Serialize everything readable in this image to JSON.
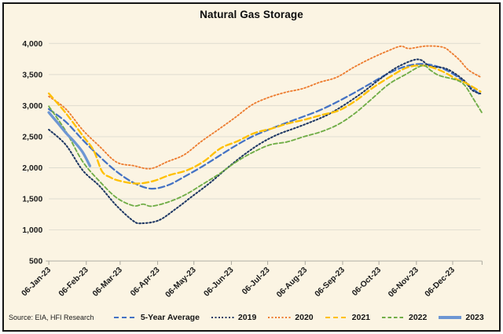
{
  "source_note": "Source: EIA, HFI Research",
  "colors": {
    "background": "#FBF4E3",
    "border": "#141414",
    "gridline": "#DEDCD0",
    "axis_line": "#BFBDB2",
    "tick_mark": "#A9A79D",
    "label_text": "#1A1A1A"
  },
  "chart_data": {
    "type": "line",
    "title": "Natural Gas Storage",
    "xlabel": "",
    "ylabel": "",
    "grid": true,
    "legend_position": "bottom",
    "x_axis": {
      "unit": "day-of-year-2023",
      "domain_days": [
        6,
        363
      ],
      "tick_labels": [
        "06-Jan-23",
        "06-Feb-23",
        "06-Mar-23",
        "06-Apr-23",
        "06-May-23",
        "06-Jun-23",
        "06-Jul-23",
        "06-Aug-23",
        "06-Sep-23",
        "06-Oct-23",
        "06-Nov-23",
        "06-Dec-23"
      ],
      "tick_days": [
        6,
        37,
        65,
        96,
        126,
        157,
        187,
        218,
        249,
        279,
        310,
        340
      ]
    },
    "y_axis": {
      "min": 500,
      "max": 4000,
      "step": 500,
      "tick_labels": [
        "500",
        "1,000",
        "1,500",
        "2,000",
        "2,500",
        "3,000",
        "3,500",
        "4,000"
      ]
    },
    "series": [
      {
        "name": "5-Year Average",
        "color": "#4472C4",
        "style": "dash",
        "width": 2.3,
        "points": [
          [
            6,
            2945
          ],
          [
            20,
            2740
          ],
          [
            34,
            2450
          ],
          [
            48,
            2180
          ],
          [
            62,
            1940
          ],
          [
            76,
            1760
          ],
          [
            90,
            1665
          ],
          [
            104,
            1715
          ],
          [
            118,
            1855
          ],
          [
            132,
            2010
          ],
          [
            146,
            2180
          ],
          [
            160,
            2350
          ],
          [
            174,
            2500
          ],
          [
            188,
            2615
          ],
          [
            202,
            2720
          ],
          [
            216,
            2820
          ],
          [
            230,
            2925
          ],
          [
            244,
            3055
          ],
          [
            258,
            3200
          ],
          [
            272,
            3355
          ],
          [
            286,
            3510
          ],
          [
            300,
            3625
          ],
          [
            314,
            3670
          ],
          [
            328,
            3625
          ],
          [
            342,
            3490
          ],
          [
            356,
            3280
          ],
          [
            363,
            3170
          ]
        ]
      },
      {
        "name": "2019",
        "color": "#1F3864",
        "style": "dot",
        "width": 2.1,
        "points": [
          [
            6,
            2614
          ],
          [
            20,
            2370
          ],
          [
            34,
            1960
          ],
          [
            48,
            1705
          ],
          [
            62,
            1390
          ],
          [
            76,
            1143
          ],
          [
            83,
            1107
          ],
          [
            97,
            1155
          ],
          [
            111,
            1339
          ],
          [
            125,
            1547
          ],
          [
            139,
            1753
          ],
          [
            153,
            1986
          ],
          [
            167,
            2203
          ],
          [
            181,
            2390
          ],
          [
            195,
            2533
          ],
          [
            209,
            2634
          ],
          [
            223,
            2738
          ],
          [
            237,
            2857
          ],
          [
            251,
            3019
          ],
          [
            265,
            3205
          ],
          [
            279,
            3415
          ],
          [
            293,
            3606
          ],
          [
            307,
            3729
          ],
          [
            314,
            3732
          ],
          [
            321,
            3638
          ],
          [
            335,
            3591
          ],
          [
            349,
            3411
          ],
          [
            356,
            3250
          ],
          [
            363,
            3192
          ]
        ]
      },
      {
        "name": "2020",
        "color": "#ED7D31",
        "style": "dot",
        "width": 1.9,
        "points": [
          [
            6,
            3148
          ],
          [
            20,
            2947
          ],
          [
            34,
            2609
          ],
          [
            48,
            2343
          ],
          [
            62,
            2091
          ],
          [
            76,
            2034
          ],
          [
            90,
            1986
          ],
          [
            104,
            2097
          ],
          [
            118,
            2210
          ],
          [
            132,
            2422
          ],
          [
            146,
            2612
          ],
          [
            160,
            2807
          ],
          [
            174,
            3012
          ],
          [
            188,
            3133
          ],
          [
            202,
            3215
          ],
          [
            216,
            3274
          ],
          [
            230,
            3375
          ],
          [
            244,
            3455
          ],
          [
            258,
            3614
          ],
          [
            272,
            3756
          ],
          [
            286,
            3877
          ],
          [
            297,
            3955
          ],
          [
            304,
            3919
          ],
          [
            318,
            3958
          ],
          [
            332,
            3939
          ],
          [
            339,
            3848
          ],
          [
            346,
            3726
          ],
          [
            353,
            3574
          ],
          [
            363,
            3460
          ]
        ]
      },
      {
        "name": "2021",
        "color": "#FFC000",
        "style": "dash",
        "width": 2.4,
        "points": [
          [
            6,
            3196
          ],
          [
            20,
            2881
          ],
          [
            34,
            2518
          ],
          [
            43,
            2281
          ],
          [
            50,
            1943
          ],
          [
            57,
            1845
          ],
          [
            64,
            1793
          ],
          [
            78,
            1746
          ],
          [
            92,
            1784
          ],
          [
            106,
            1883
          ],
          [
            120,
            1958
          ],
          [
            134,
            2100
          ],
          [
            148,
            2313
          ],
          [
            162,
            2427
          ],
          [
            176,
            2558
          ],
          [
            190,
            2629
          ],
          [
            204,
            2714
          ],
          [
            218,
            2776
          ],
          [
            232,
            2851
          ],
          [
            246,
            2923
          ],
          [
            260,
            3082
          ],
          [
            274,
            3288
          ],
          [
            288,
            3461
          ],
          [
            302,
            3611
          ],
          [
            316,
            3644
          ],
          [
            330,
            3564
          ],
          [
            344,
            3417
          ],
          [
            351,
            3362
          ],
          [
            363,
            3226
          ]
        ]
      },
      {
        "name": "2022",
        "color": "#70AD47",
        "style": "shortdash",
        "width": 1.9,
        "points": [
          [
            6,
            2989
          ],
          [
            20,
            2591
          ],
          [
            34,
            2101
          ],
          [
            48,
            1782
          ],
          [
            62,
            1519
          ],
          [
            76,
            1389
          ],
          [
            84,
            1415
          ],
          [
            91,
            1382
          ],
          [
            105,
            1450
          ],
          [
            119,
            1567
          ],
          [
            133,
            1732
          ],
          [
            147,
            1902
          ],
          [
            161,
            2095
          ],
          [
            175,
            2251
          ],
          [
            189,
            2369
          ],
          [
            203,
            2416
          ],
          [
            217,
            2501
          ],
          [
            231,
            2579
          ],
          [
            245,
            2694
          ],
          [
            259,
            2874
          ],
          [
            273,
            3106
          ],
          [
            287,
            3342
          ],
          [
            301,
            3501
          ],
          [
            315,
            3644
          ],
          [
            322,
            3564
          ],
          [
            329,
            3483
          ],
          [
            343,
            3412
          ],
          [
            350,
            3325
          ],
          [
            357,
            3112
          ],
          [
            364,
            2891
          ]
        ]
      },
      {
        "name": "2023",
        "color": "#6D96D3",
        "style": "solid",
        "width": 3.4,
        "points": [
          [
            6,
            2890
          ],
          [
            13,
            2730
          ],
          [
            20,
            2565
          ],
          [
            27,
            2420
          ],
          [
            34,
            2250
          ],
          [
            40,
            2030
          ]
        ]
      }
    ]
  }
}
